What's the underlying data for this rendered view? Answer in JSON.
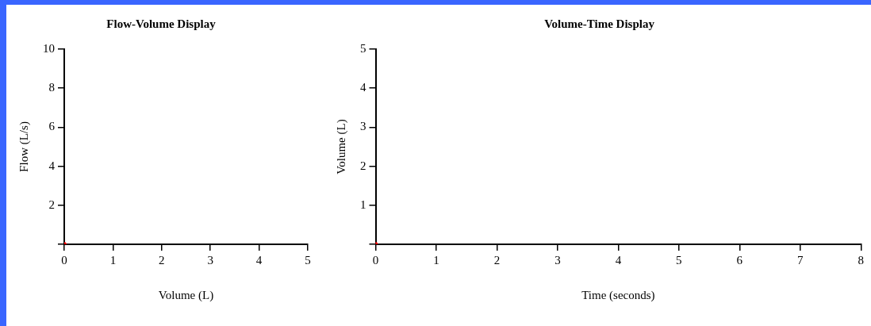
{
  "chart_data": [
    {
      "type": "scatter",
      "title": "Flow-Volume Display",
      "xlabel": "Volume (L)",
      "ylabel": "Flow (L/s)",
      "x": [
        0
      ],
      "values": [
        0
      ],
      "color": "#ff0000",
      "marker": "circle",
      "xlim": [
        0,
        5
      ],
      "xticks": [
        0,
        1,
        2,
        3,
        4,
        5
      ],
      "ylim": [
        0,
        10
      ],
      "yticks": [
        {
          "value": 0,
          "label": null
        },
        2,
        4,
        6,
        8,
        10
      ]
    },
    {
      "type": "scatter",
      "title": "Volume-Time Display",
      "xlabel": "Time (seconds)",
      "ylabel": "Volume (L)",
      "x": [
        0
      ],
      "values": [
        0
      ],
      "color": "#ff0000",
      "marker": "circle",
      "xlim": [
        0,
        8
      ],
      "xticks": [
        0,
        1,
        2,
        3,
        4,
        5,
        6,
        7,
        8
      ],
      "ylim": [
        0,
        5
      ],
      "yticks": [
        {
          "value": 0,
          "label": null
        },
        1,
        2,
        3,
        4,
        5
      ]
    }
  ]
}
